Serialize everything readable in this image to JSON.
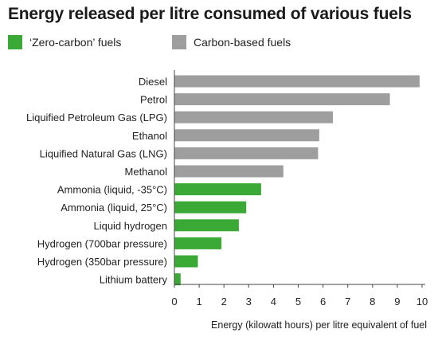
{
  "title": "Energy released per litre consumed of various fuels",
  "legend": [
    {
      "label": "‘Zero-carbon’ fuels",
      "color": "#3aa935"
    },
    {
      "label": "Carbon-based fuels",
      "color": "#9e9e9e"
    }
  ],
  "chart_data": {
    "type": "bar",
    "orientation": "horizontal",
    "title": "Energy released per litre consumed of various fuels",
    "xlabel": "Energy (kilowatt hours) per litre equivalent of fuel",
    "ylabel": "",
    "xlim": [
      0,
      10
    ],
    "xticks": [
      0,
      1,
      2,
      3,
      4,
      5,
      6,
      7,
      8,
      9,
      10
    ],
    "grid": false,
    "legend_position": "top-left",
    "categories": [
      "Diesel",
      "Petrol",
      "Liquified Petroleum Gas (LPG)",
      "Ethanol",
      "Liquified Natural Gas (LNG)",
      "Methanol",
      "Ammonia (liquid, -35°C)",
      "Ammonia (liquid, 25°C)",
      "Liquid hydrogen",
      "Hydrogen (700bar pressure)",
      "Hydrogen (350bar pressure)",
      "Lithium battery"
    ],
    "values": [
      9.9,
      8.7,
      6.4,
      5.85,
      5.8,
      4.4,
      3.5,
      2.9,
      2.6,
      1.9,
      0.95,
      0.25
    ],
    "groups": [
      "Carbon-based fuels",
      "Carbon-based fuels",
      "Carbon-based fuels",
      "Carbon-based fuels",
      "Carbon-based fuels",
      "Carbon-based fuels",
      "‘Zero-carbon’ fuels",
      "‘Zero-carbon’ fuels",
      "‘Zero-carbon’ fuels",
      "‘Zero-carbon’ fuels",
      "‘Zero-carbon’ fuels",
      "‘Zero-carbon’ fuels"
    ],
    "colors": {
      "‘Zero-carbon’ fuels": "#3aa935",
      "Carbon-based fuels": "#9e9e9e"
    }
  }
}
